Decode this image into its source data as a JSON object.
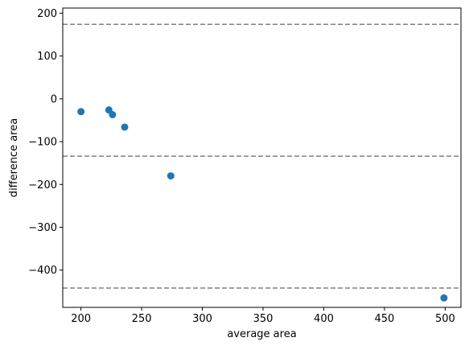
{
  "chart_data": {
    "type": "scatter",
    "title": "",
    "xlabel": "average area",
    "ylabel": "difference area",
    "xlim": [
      185,
      513
    ],
    "ylim": [
      -487,
      212
    ],
    "xticks": [
      200,
      250,
      300,
      350,
      400,
      450,
      500
    ],
    "yticks": [
      -400,
      -300,
      -200,
      -100,
      0,
      100,
      200
    ],
    "xtick_labels": [
      "200",
      "250",
      "300",
      "350",
      "400",
      "450",
      "500"
    ],
    "ytick_labels": [
      "−400",
      "−300",
      "−200",
      "−100",
      "0",
      "100",
      "200"
    ],
    "grid": false,
    "points": [
      {
        "x": 200,
        "y": -30
      },
      {
        "x": 223,
        "y": -26
      },
      {
        "x": 226,
        "y": -37
      },
      {
        "x": 236,
        "y": -66
      },
      {
        "x": 274,
        "y": -180
      },
      {
        "x": 499,
        "y": -465
      }
    ],
    "hlines": [
      {
        "y": 174,
        "style": "dashed"
      },
      {
        "y": -134,
        "style": "dashed"
      },
      {
        "y": -442,
        "style": "dashed"
      }
    ],
    "colors": {
      "points": "#1f77b4",
      "hlines": "#808080",
      "axes": "#000000"
    }
  }
}
